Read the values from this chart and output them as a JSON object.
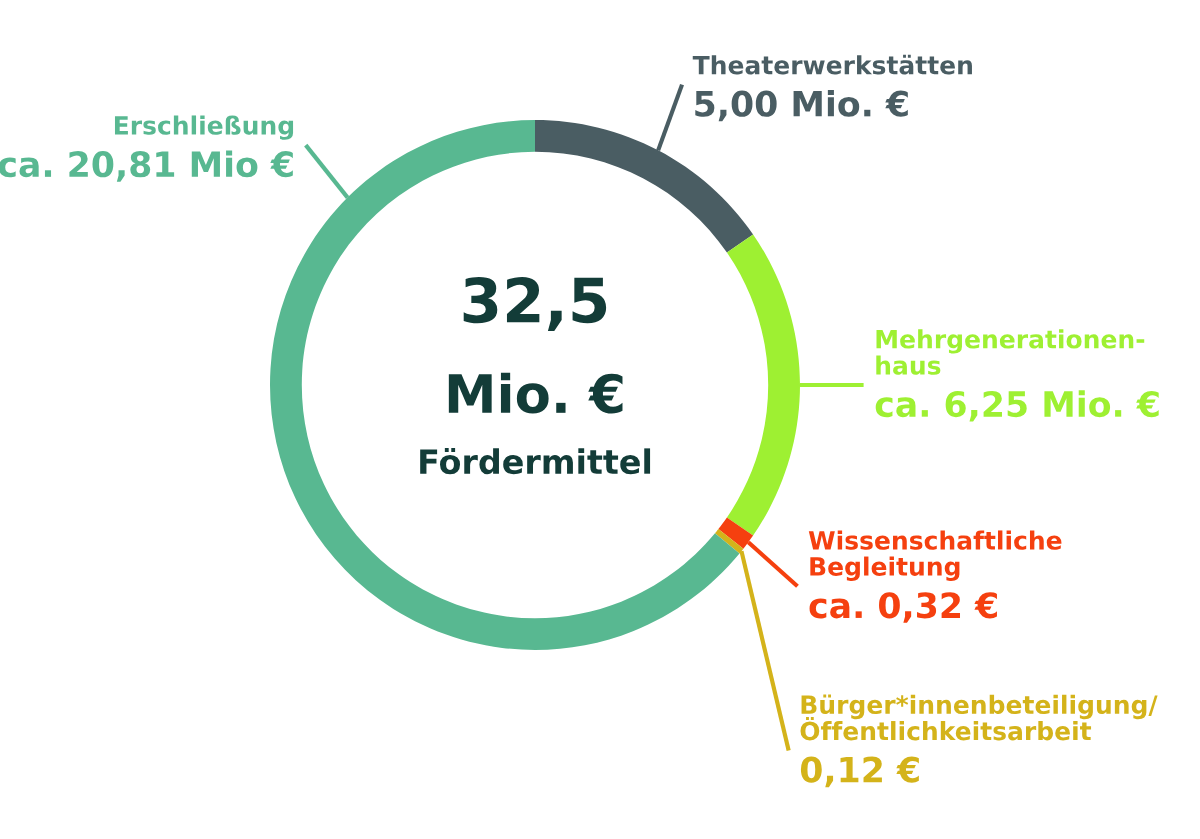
{
  "chart_data": {
    "type": "donut",
    "categories": [
      "Theaterwerkstätten",
      "Mehrgenerationen-\nhaus",
      "Wissenschaftliche\nBegleitung",
      "Bürger*innenbeteiligung/\nÖffentlichkeitsarbeit",
      "Erschließung"
    ],
    "values": [
      5.0,
      6.25,
      0.32,
      0.12,
      20.81
    ],
    "value_labels": [
      "5,00 Mio. €",
      "ca. 6,25 Mio. €",
      "ca. 0,32 €",
      "0,12 €",
      "ca. 20,81 Mio €"
    ],
    "colors": [
      "#4a5d63",
      "#9ef032",
      "#f5400f",
      "#d4b31a",
      "#58b891"
    ],
    "annotations": [
      "32,5",
      "Mio. €",
      "Fördermittel"
    ]
  }
}
